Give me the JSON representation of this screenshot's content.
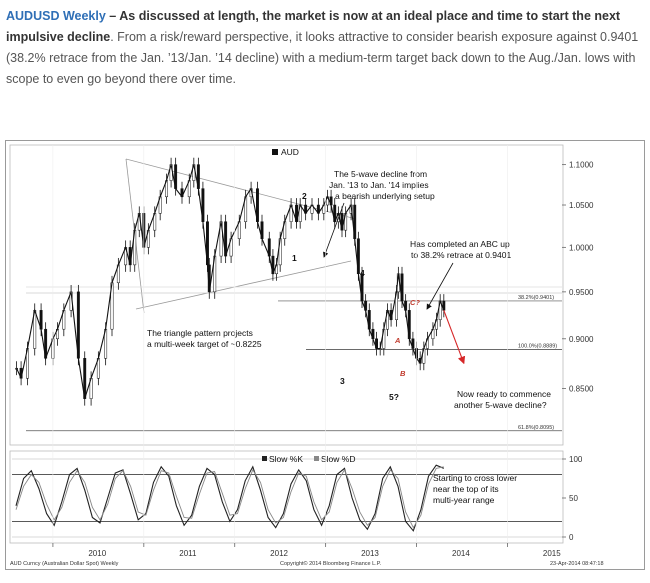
{
  "intro": {
    "lead": "AUDUSD Weekly",
    "dash": " – ",
    "bold_text": "As discussed at length, the market is now at an ideal place and time to start the next impulsive decline",
    "rest": ". From a risk/reward perspective, it looks attractive to consider bearish exposure against 0.9401 (38.2% retrace from the Jan. ’13/Jan. ’14 decline) with a medium-term target back down to the Aug./Jan. lows with scope to even go beyond there over time."
  },
  "chart_data": [
    {
      "type": "candlestick",
      "legend": "AUD",
      "colors": {
        "price": "#111111",
        "projection": "#d62728",
        "trend_lines": "#999999"
      },
      "x_ticks": [
        "2010",
        "2011",
        "2012",
        "2013",
        "2014",
        "2015"
      ],
      "y_ticks": [
        "1.1000",
        "1.0500",
        "1.0000",
        "0.9500",
        "0.9000",
        "0.8500"
      ],
      "ylim": [
        0.8,
        1.12
      ],
      "y_scale": "log",
      "levels": [
        {
          "label": "38.2%(0.9401)",
          "value": 0.9401
        },
        {
          "label": "100.0%(0.8889)",
          "value": 0.8889
        },
        {
          "label": "61.8%(0.8095)",
          "value": 0.8095
        }
      ],
      "price_path": [
        [
          2009.6,
          0.87
        ],
        [
          2009.65,
          0.86
        ],
        [
          2009.72,
          0.89
        ],
        [
          2009.8,
          0.93
        ],
        [
          2009.87,
          0.91
        ],
        [
          2009.92,
          0.88
        ],
        [
          2010.0,
          0.9
        ],
        [
          2010.05,
          0.91
        ],
        [
          2010.12,
          0.93
        ],
        [
          2010.2,
          0.95
        ],
        [
          2010.28,
          0.88
        ],
        [
          2010.35,
          0.84
        ],
        [
          2010.42,
          0.86
        ],
        [
          2010.5,
          0.88
        ],
        [
          2010.58,
          0.91
        ],
        [
          2010.65,
          0.96
        ],
        [
          2010.72,
          0.98
        ],
        [
          2010.8,
          1.0
        ],
        [
          2010.85,
          0.98
        ],
        [
          2010.9,
          1.02
        ],
        [
          2010.95,
          1.04
        ],
        [
          2011.0,
          1.0
        ],
        [
          2011.05,
          1.02
        ],
        [
          2011.12,
          1.04
        ],
        [
          2011.18,
          1.06
        ],
        [
          2011.25,
          1.08
        ],
        [
          2011.3,
          1.1
        ],
        [
          2011.35,
          1.07
        ],
        [
          2011.42,
          1.06
        ],
        [
          2011.5,
          1.08
        ],
        [
          2011.55,
          1.1
        ],
        [
          2011.6,
          1.07
        ],
        [
          2011.65,
          1.03
        ],
        [
          2011.7,
          0.98
        ],
        [
          2011.72,
          0.95
        ],
        [
          2011.78,
          0.99
        ],
        [
          2011.85,
          1.03
        ],
        [
          2011.9,
          0.99
        ],
        [
          2011.96,
          1.01
        ],
        [
          2012.05,
          1.03
        ],
        [
          2012.12,
          1.06
        ],
        [
          2012.18,
          1.07
        ],
        [
          2012.25,
          1.03
        ],
        [
          2012.3,
          1.01
        ],
        [
          2012.38,
          0.99
        ],
        [
          2012.42,
          0.97
        ],
        [
          2012.46,
          0.98
        ],
        [
          2012.5,
          1.01
        ],
        [
          2012.55,
          1.03
        ],
        [
          2012.62,
          1.05
        ],
        [
          2012.68,
          1.03
        ],
        [
          2012.72,
          1.05
        ],
        [
          2012.78,
          1.04
        ],
        [
          2012.85,
          1.05
        ],
        [
          2012.92,
          1.04
        ],
        [
          2012.98,
          1.05
        ],
        [
          2013.02,
          1.06
        ],
        [
          2013.06,
          1.05
        ],
        [
          2013.1,
          1.03
        ],
        [
          2013.14,
          1.04
        ],
        [
          2013.18,
          1.02
        ],
        [
          2013.22,
          1.04
        ],
        [
          2013.28,
          1.05
        ],
        [
          2013.32,
          1.01
        ],
        [
          2013.36,
          0.97
        ],
        [
          2013.4,
          0.94
        ],
        [
          2013.44,
          0.93
        ],
        [
          2013.48,
          0.91
        ],
        [
          2013.52,
          0.9
        ],
        [
          2013.56,
          0.89
        ],
        [
          2013.6,
          0.89
        ],
        [
          2013.64,
          0.91
        ],
        [
          2013.68,
          0.93
        ],
        [
          2013.72,
          0.92
        ],
        [
          2013.78,
          0.95
        ],
        [
          2013.8,
          0.97
        ],
        [
          2013.84,
          0.94
        ],
        [
          2013.88,
          0.93
        ],
        [
          2013.92,
          0.9
        ],
        [
          2013.96,
          0.89
        ],
        [
          2014.0,
          0.88
        ],
        [
          2014.04,
          0.875
        ],
        [
          2014.08,
          0.89
        ],
        [
          2014.12,
          0.9
        ],
        [
          2014.18,
          0.91
        ],
        [
          2014.22,
          0.92
        ],
        [
          2014.26,
          0.94
        ],
        [
          2014.3,
          0.93
        ]
      ],
      "projection": [
        [
          2014.3,
          0.93
        ],
        [
          2014.52,
          0.875
        ]
      ],
      "annotations": [
        {
          "text_lines": [
            "The 5-wave decline from",
            "Jan. '13 to Jan. '14 implies",
            "a bearish underlying setup"
          ]
        },
        {
          "text_lines": [
            "Has completed an ABC up",
            "to 38.2% retrace at 0.9401"
          ]
        },
        {
          "text_lines": [
            "The triangle pattern projects",
            "a multi-week target of ~0.8225"
          ]
        },
        {
          "text_lines": [
            "Now ready to commence",
            "another 5-wave decline?"
          ]
        }
      ],
      "wave_labels": [
        "2",
        "1",
        "4",
        "3",
        "5?",
        "C?",
        "A",
        "B"
      ]
    },
    {
      "type": "line",
      "series": [
        {
          "name": "Slow %K",
          "color": "#222222",
          "values": [
            40,
            75,
            85,
            62,
            30,
            15,
            45,
            80,
            88,
            60,
            25,
            18,
            50,
            82,
            86,
            55,
            22,
            30,
            70,
            90,
            78,
            40,
            15,
            28,
            65,
            88,
            80,
            45,
            20,
            35,
            72,
            90,
            60,
            25,
            12,
            30,
            68,
            86,
            72,
            35,
            15,
            40,
            80,
            88,
            50,
            22,
            10,
            30,
            75,
            90,
            65,
            20,
            8,
            35,
            78,
            92,
            88
          ]
        },
        {
          "name": "Slow %D",
          "color": "#888888",
          "values": [
            35,
            65,
            80,
            70,
            42,
            22,
            38,
            70,
            85,
            70,
            38,
            22,
            42,
            75,
            85,
            65,
            32,
            28,
            60,
            85,
            82,
            52,
            25,
            24,
            55,
            82,
            84,
            56,
            28,
            30,
            62,
            86,
            70,
            35,
            18,
            25,
            58,
            82,
            78,
            45,
            22,
            32,
            70,
            86,
            62,
            32,
            15,
            25,
            65,
            86,
            75,
            32,
            12,
            28,
            68,
            88,
            90
          ]
        }
      ],
      "y_ticks": [
        "100",
        "50",
        "0"
      ],
      "ylim": [
        0,
        100
      ],
      "annotation": [
        "Starting to cross lower",
        "near the top of its",
        "multi-year range"
      ]
    }
  ],
  "footer": {
    "left": "AUD Curncy (Australian Dollar Spot) Weekly",
    "center": "Copyright© 2014 Bloomberg Finance L.P.",
    "right": "23-Apr-2014 08:47:18"
  }
}
